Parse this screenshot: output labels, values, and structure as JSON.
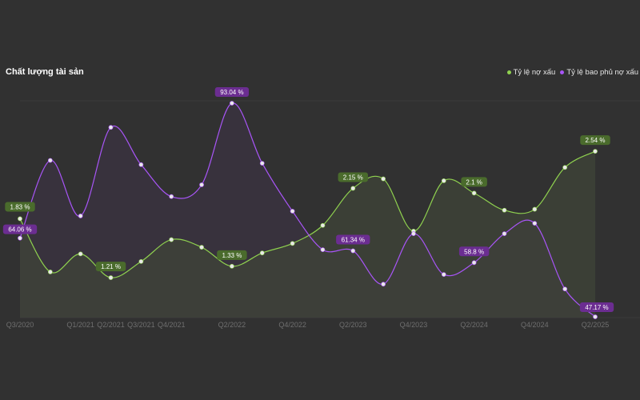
{
  "chart_data": {
    "type": "line",
    "title": "Chất lượng tài sản",
    "x_ticks": [
      "Q3/2020",
      "Q1/2021",
      "Q2/2021",
      "Q3/2021",
      "Q4/2021",
      "Q2/2022",
      "Q4/2022",
      "Q2/2023",
      "Q4/2023",
      "Q2/2024",
      "Q4/2024",
      "Q2/2025"
    ],
    "categories": [
      "Q3/2020",
      "Q4/2020",
      "Q1/2021",
      "Q2/2021",
      "Q3/2021",
      "Q4/2021",
      "Q1/2022",
      "Q2/2022",
      "Q3/2022",
      "Q4/2022",
      "Q1/2023",
      "Q2/2023",
      "Q3/2023",
      "Q4/2023",
      "Q1/2024",
      "Q2/2024",
      "Q3/2024",
      "Q4/2024",
      "Q1/2025",
      "Q2/2025"
    ],
    "series": [
      {
        "name": "Tỷ lệ nợ xấu",
        "color": "#8fd14f",
        "label_bg": "#4a6b2c",
        "fill": "#3f4438",
        "y_range": [
          1.0,
          2.6
        ],
        "values": [
          1.83,
          1.27,
          1.46,
          1.21,
          1.38,
          1.61,
          1.53,
          1.33,
          1.47,
          1.57,
          1.76,
          2.15,
          2.25,
          1.7,
          2.23,
          2.1,
          1.92,
          1.93,
          2.37,
          2.54
        ],
        "labels": {
          "0": "1.83 %",
          "3": "1.21 %",
          "7": "1.33 %",
          "11": "2.15 %",
          "15": "2.1 %",
          "19": "2.54 %"
        }
      },
      {
        "name": "Tỷ lệ bao phủ nợ xấu",
        "color": "#a855f7",
        "label_bg": "#6b2d91",
        "fill": "#3b3342",
        "y_range": [
          47.17,
          93.04
        ],
        "values": [
          64.06,
          80.76,
          68.83,
          87.85,
          79.84,
          72.99,
          75.52,
          93.04,
          80.14,
          69.85,
          61.58,
          61.34,
          54.18,
          65.02,
          56.26,
          58.8,
          65.02,
          67.25,
          53.14,
          47.17
        ],
        "labels": {
          "0": "64.06 %",
          "7": "93.04 %",
          "11": "61.34 %",
          "15": "58.8 %",
          "19": "47.17 %"
        }
      }
    ]
  }
}
